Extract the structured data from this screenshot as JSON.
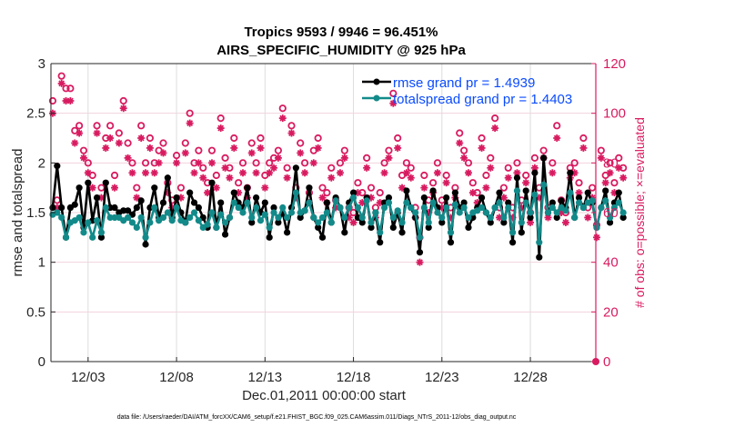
{
  "chart_data": {
    "type": "line",
    "title": [
      "Tropics 9593 / 9946 = 96.451%",
      "AIRS_SPECIFIC_HUMIDITY @ 925 hPa"
    ],
    "xlabel": "Dec.01,2011 00:00:00 start",
    "ylabel_left": "rmse and totalspread",
    "ylabel_right": "# of obs: o=possible; ×=evaluated",
    "footer": "data file: /Users/raeder/DAI/ATM_forcXX/CAM6_setup/f.e21.FHIST_BGC.f09_025.CAM6assim.011/Diags_NTrS_2011-12/obs_diag_output.nc",
    "xlim_days": [
      0.9,
      31.7
    ],
    "ylim_left": [
      0,
      3
    ],
    "ylim_right": [
      0,
      120
    ],
    "yticks_left": [
      "0",
      "0.5",
      "1",
      "1.5",
      "2",
      "2.5",
      "3"
    ],
    "yticks_right": [
      "0",
      "20",
      "40",
      "60",
      "80",
      "100",
      "120"
    ],
    "xticks": [
      {
        "day": 3,
        "label": "12/03"
      },
      {
        "day": 8,
        "label": "12/08"
      },
      {
        "day": 13,
        "label": "12/13"
      },
      {
        "day": 18,
        "label": "12/18"
      },
      {
        "day": 23,
        "label": "12/23"
      },
      {
        "day": 28,
        "label": "12/28"
      }
    ],
    "grid": true,
    "legend_position": "top-right",
    "colors": {
      "rmse": "#000000",
      "spread": "#138a8a",
      "obs": "#d81b60",
      "legend_text": "#0a4bff"
    },
    "t0_day": 1.0,
    "dt_day": 0.25,
    "series": [
      {
        "name": "rmse grand pr = 1.4939",
        "key": "rmse",
        "values": [
          1.55,
          1.97,
          1.55,
          1.25,
          1.55,
          1.58,
          1.75,
          1.35,
          1.8,
          1.42,
          1.65,
          1.25,
          1.8,
          1.55,
          1.55,
          1.5,
          1.52,
          1.52,
          1.48,
          1.55,
          1.62,
          1.18,
          1.55,
          1.75,
          1.45,
          1.6,
          1.85,
          1.45,
          1.65,
          1.5,
          1.4,
          1.7,
          1.6,
          1.55,
          1.45,
          1.35,
          1.8,
          1.35,
          1.6,
          1.28,
          1.45,
          1.7,
          1.6,
          1.55,
          1.75,
          1.4,
          1.65,
          1.5,
          1.6,
          1.25,
          1.55,
          1.4,
          1.5,
          1.3,
          1.55,
          1.95,
          1.45,
          1.52,
          1.75,
          1.45,
          1.35,
          1.25,
          1.6,
          1.4,
          1.65,
          1.55,
          1.3,
          1.6,
          1.7,
          1.45,
          1.4,
          1.65,
          1.35,
          1.5,
          1.2,
          1.6,
          1.65,
          1.35,
          1.5,
          1.3,
          1.72,
          1.55,
          1.45,
          1.1,
          1.65,
          1.35,
          1.72,
          1.55,
          1.4,
          1.65,
          1.2,
          1.7,
          1.55,
          1.6,
          1.35,
          1.45,
          1.55,
          1.65,
          1.5,
          1.4,
          1.55,
          1.7,
          1.4,
          1.6,
          1.2,
          1.85,
          1.3,
          1.72,
          1.45,
          1.9,
          1.05,
          2.05,
          1.5,
          1.6,
          1.45,
          1.62,
          1.55,
          1.9,
          1.45,
          1.65,
          1.55,
          1.7,
          1.6,
          1.35,
          1.55,
          1.72,
          1.4,
          1.6,
          1.7,
          1.45
        ]
      },
      {
        "name": "totalspread grand pr = 1.4403",
        "key": "spread",
        "values": [
          1.48,
          1.5,
          1.45,
          1.25,
          1.4,
          1.42,
          1.45,
          1.3,
          1.4,
          1.25,
          1.42,
          1.3,
          1.55,
          1.45,
          1.45,
          1.45,
          1.42,
          1.45,
          1.4,
          1.35,
          1.45,
          1.25,
          1.4,
          1.55,
          1.42,
          1.45,
          1.5,
          1.42,
          1.55,
          1.42,
          1.4,
          1.45,
          1.5,
          1.42,
          1.35,
          1.38,
          1.5,
          1.35,
          1.48,
          1.4,
          1.45,
          1.6,
          1.55,
          1.5,
          1.6,
          1.45,
          1.55,
          1.42,
          1.48,
          1.35,
          1.5,
          1.45,
          1.55,
          1.45,
          1.5,
          1.7,
          1.5,
          1.52,
          1.6,
          1.45,
          1.4,
          1.45,
          1.5,
          1.4,
          1.62,
          1.55,
          1.45,
          1.55,
          1.65,
          1.55,
          1.45,
          1.62,
          1.4,
          1.5,
          1.3,
          1.55,
          1.6,
          1.45,
          1.52,
          1.4,
          1.6,
          1.55,
          1.5,
          1.25,
          1.55,
          1.4,
          1.6,
          1.5,
          1.45,
          1.55,
          1.3,
          1.58,
          1.5,
          1.55,
          1.45,
          1.5,
          1.52,
          1.55,
          1.5,
          1.45,
          1.55,
          1.6,
          1.45,
          1.55,
          1.3,
          1.72,
          1.4,
          1.6,
          1.5,
          1.68,
          1.2,
          1.78,
          1.5,
          1.55,
          1.5,
          1.55,
          1.52,
          1.7,
          1.45,
          1.6,
          1.55,
          1.6,
          1.62,
          1.35,
          1.55,
          1.62,
          1.45,
          1.55,
          1.6,
          1.5
        ]
      },
      {
        "name": "obs possible",
        "key": "obs_possible",
        "values": [
          105,
          65,
          115,
          110,
          110,
          93,
          95,
          85,
          80,
          75,
          95,
          70,
          90,
          95,
          75,
          92,
          105,
          88,
          80,
          70,
          95,
          80,
          90,
          80,
          85,
          88,
          72,
          65,
          83,
          70,
          88,
          100,
          80,
          85,
          78,
          72,
          85,
          75,
          98,
          82,
          78,
          90,
          72,
          80,
          70,
          88,
          80,
          90,
          75,
          80,
          82,
          85,
          102,
          78,
          95,
          70,
          88,
          80,
          68,
          85,
          90,
          70,
          68,
          78,
          65,
          80,
          85,
          62,
          60,
          72,
          68,
          82,
          70,
          62,
          68,
          80,
          85,
          108,
          90,
          75,
          80,
          78,
          62,
          50,
          75,
          65,
          72,
          80,
          65,
          75,
          62,
          70,
          92,
          85,
          80,
          72,
          68,
          90,
          75,
          82,
          98,
          62,
          70,
          78,
          62,
          80,
          65,
          75,
          60,
          82,
          70,
          85,
          62,
          80,
          95,
          65,
          60,
          78,
          80,
          72,
          90,
          62,
          70,
          55,
          85,
          75,
          80,
          72,
          82,
          78
        ]
      },
      {
        "name": "obs evaluated",
        "key": "obs_evaluated",
        "values": [
          100,
          62,
          112,
          105,
          105,
          88,
          92,
          82,
          76,
          70,
          92,
          66,
          86,
          90,
          70,
          88,
          102,
          82,
          76,
          66,
          90,
          76,
          86,
          76,
          80,
          84,
          68,
          62,
          80,
          66,
          84,
          96,
          76,
          80,
          74,
          68,
          80,
          70,
          94,
          78,
          74,
          86,
          68,
          76,
          66,
          84,
          76,
          86,
          70,
          76,
          78,
          82,
          98,
          74,
          92,
          66,
          84,
          76,
          64,
          80,
          86,
          66,
          64,
          74,
          62,
          76,
          82,
          58,
          56,
          68,
          64,
          78,
          66,
          58,
          64,
          76,
          82,
          104,
          86,
          70,
          76,
          74,
          58,
          40,
          70,
          60,
          68,
          76,
          62,
          72,
          58,
          66,
          88,
          82,
          76,
          68,
          64,
          86,
          70,
          78,
          94,
          58,
          66,
          74,
          58,
          76,
          62,
          72,
          56,
          78,
          66,
          82,
          58,
          76,
          90,
          60,
          56,
          74,
          76,
          68,
          86,
          58,
          66,
          50,
          82,
          72,
          76,
          68,
          78,
          74
        ]
      }
    ]
  }
}
